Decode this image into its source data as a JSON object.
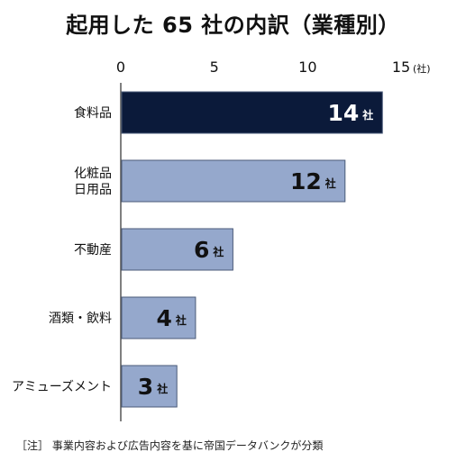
{
  "chart_data": {
    "type": "bar",
    "orientation": "horizontal",
    "title": "起用した 65 社の内訳（業種別）",
    "categories": [
      "食料品",
      "化粧品\n日用品",
      "不動産",
      "酒類・飲料",
      "アミューズメント"
    ],
    "values": [
      14,
      12,
      6,
      4,
      3
    ],
    "value_labels": [
      "14",
      "12",
      "6",
      "4",
      "3"
    ],
    "value_unit": "社",
    "xlim": [
      0,
      15
    ],
    "xticks": [
      "0",
      "5",
      "10",
      "15"
    ],
    "x_unit_label": "(社)",
    "grid": false,
    "highlight_index": 0,
    "colors": {
      "highlight_bar": "#0b1a3a",
      "bar": "#95a8cc",
      "bar_stroke": "#4a5a78",
      "axis": "#555555"
    },
    "note": "［注］ 事業内容および広告内容を基に帝国データバンクが分類"
  }
}
